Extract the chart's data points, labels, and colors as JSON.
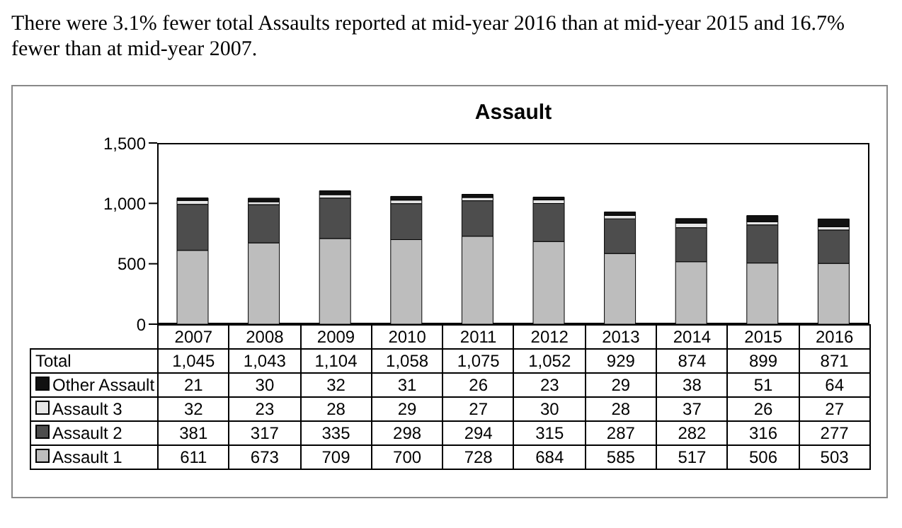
{
  "chart_data": {
    "type": "bar",
    "title": "Assault",
    "annotations": [
      "There were 3.1% fewer total Assaults reported at mid-year 2016 than at mid-year 2015 and 16.7% fewer than at mid-year 2007.",
      "Total"
    ],
    "categories": [
      "2007",
      "2008",
      "2009",
      "2010",
      "2011",
      "2012",
      "2013",
      "2014",
      "2015",
      "2016"
    ],
    "stacked": true,
    "series": [
      {
        "name": "Assault 1",
        "color": "#bdbdbd",
        "values": [
          611,
          673,
          709,
          700,
          728,
          684,
          585,
          517,
          506,
          503
        ]
      },
      {
        "name": "Assault 2",
        "color": "#4d4d4d",
        "values": [
          381,
          317,
          335,
          298,
          294,
          315,
          287,
          282,
          316,
          277
        ]
      },
      {
        "name": "Assault 3",
        "color": "#e6e6e6",
        "values": [
          32,
          23,
          28,
          29,
          27,
          30,
          28,
          37,
          26,
          27
        ]
      },
      {
        "name": "Other Assault",
        "color": "#111111",
        "values": [
          21,
          30,
          32,
          31,
          26,
          23,
          29,
          38,
          51,
          64
        ]
      }
    ],
    "totals": [
      "1,045",
      "1,043",
      "1,104",
      "1,058",
      "1,075",
      "1,052",
      "929",
      "874",
      "899",
      "871"
    ],
    "data_labels": true,
    "legend": "bottom",
    "ylim": [
      0,
      1500
    ],
    "yticks": [
      0,
      {
        "value": 500,
        "label": "500"
      },
      {
        "value": 1000,
        "label": "1,000"
      },
      {
        "value": 1500,
        "label": "1,500"
      }
    ]
  }
}
